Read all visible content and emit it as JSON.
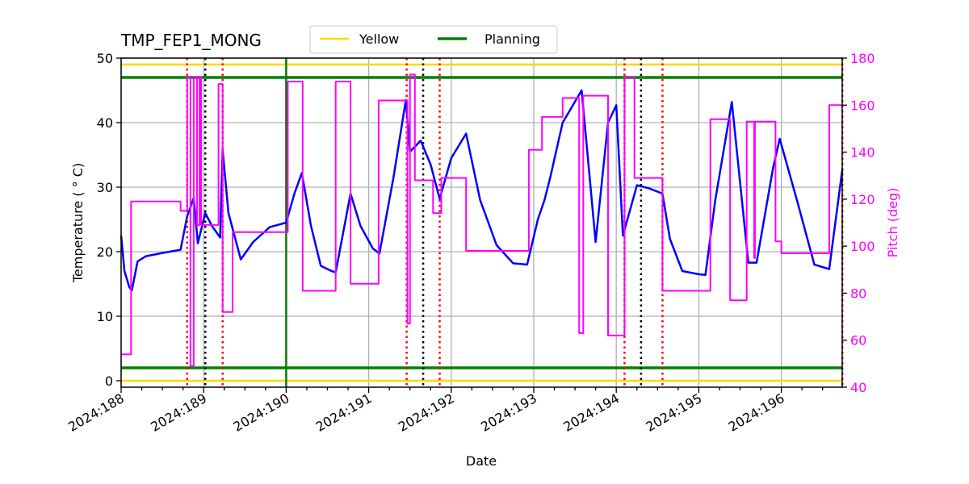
{
  "chart_data": {
    "type": "line",
    "title": "TMP_FEP1_MONG",
    "xlabel": "Date",
    "ylabel": "Temperature ($^\\circ$C)",
    "ylabel_display": "Temperature ( ° C)",
    "y2label": "Pitch (deg)",
    "xlim": [
      188.0,
      196.74
    ],
    "ylim": [
      -1.0,
      50.0
    ],
    "y2lim": [
      40,
      180
    ],
    "x_ticks": [
      188,
      189,
      190,
      191,
      192,
      193,
      194,
      195,
      196
    ],
    "x_tick_labels": [
      "2024:188",
      "2024:189",
      "2024:190",
      "2024:191",
      "2024:192",
      "2024:193",
      "2024:194",
      "2024:195",
      "2024:196"
    ],
    "y_ticks": [
      0,
      10,
      20,
      30,
      40,
      50
    ],
    "y2_ticks": [
      40,
      60,
      80,
      100,
      120,
      140,
      160,
      180
    ],
    "grid": true,
    "legend": {
      "position": "upper center (above axes)",
      "entries": [
        {
          "label": "Yellow",
          "color": "#ffd700"
        },
        {
          "label": "Planning",
          "color": "#008000"
        }
      ]
    },
    "limit_lines": {
      "yellow": [
        0.0,
        49.0
      ],
      "planning": [
        2.0,
        47.0
      ]
    },
    "vertical_lines": {
      "planning_green": [
        190.0
      ],
      "red_dotted": [
        188.8,
        189.23,
        191.46,
        191.86,
        194.1,
        194.56,
        196.74
      ],
      "black_dotted": [
        189.02,
        191.66,
        194.3
      ]
    },
    "series": [
      {
        "name": "TMP_FEP1_MONG",
        "axis": "left",
        "color": "#0000ff",
        "x": [
          188.0,
          188.04,
          188.1,
          188.13,
          188.2,
          188.3,
          188.5,
          188.72,
          188.8,
          188.88,
          188.93,
          189.02,
          189.1,
          189.2,
          189.23,
          189.3,
          189.45,
          189.6,
          189.8,
          190.0,
          190.1,
          190.19,
          190.3,
          190.42,
          190.55,
          190.6,
          190.78,
          190.9,
          191.05,
          191.13,
          191.3,
          191.45,
          191.5,
          191.63,
          191.75,
          191.86,
          192.0,
          192.18,
          192.35,
          192.55,
          192.75,
          192.92,
          193.05,
          193.13,
          193.2,
          193.35,
          193.58,
          193.75,
          193.9,
          194.0,
          194.08,
          194.25,
          194.4,
          194.56,
          194.65,
          194.8,
          195.0,
          195.08,
          195.2,
          195.4,
          195.6,
          195.7,
          195.9,
          195.98,
          196.2,
          196.4,
          196.58,
          196.74
        ],
        "values": [
          22.5,
          17.0,
          14.5,
          14.0,
          18.5,
          19.3,
          19.8,
          20.3,
          25.5,
          28.3,
          21.3,
          26.0,
          24.0,
          22.2,
          35.8,
          26.0,
          18.8,
          21.5,
          23.8,
          24.5,
          29.0,
          32.2,
          24.0,
          17.8,
          17.0,
          16.8,
          29.0,
          24.0,
          20.5,
          19.7,
          31.5,
          43.5,
          35.5,
          37.2,
          33.5,
          28.2,
          34.5,
          38.3,
          28.0,
          21.0,
          18.2,
          18.0,
          25.0,
          28.0,
          31.5,
          40.0,
          45.0,
          21.5,
          40.0,
          42.7,
          22.5,
          30.3,
          29.8,
          29.0,
          22.0,
          17.0,
          16.5,
          16.4,
          28.0,
          43.2,
          18.3,
          18.3,
          33.0,
          37.5,
          27.5,
          18.0,
          17.3,
          32.8
        ]
      },
      {
        "name": "Pitch",
        "axis": "right",
        "color": "#ff00ff",
        "step": true,
        "x": [
          188.0,
          188.12,
          188.72,
          188.8,
          188.84,
          188.87,
          188.88,
          188.92,
          188.95,
          188.97,
          189.0,
          189.1,
          189.18,
          189.23,
          189.35,
          189.8,
          190.02,
          190.2,
          190.6,
          190.78,
          191.12,
          191.47,
          191.5,
          191.56,
          191.65,
          191.78,
          191.88,
          192.18,
          192.88,
          192.94,
          193.1,
          193.35,
          193.55,
          193.6,
          193.9,
          194.1,
          194.22,
          194.56,
          195.14,
          195.38,
          195.58,
          195.67,
          195.68,
          195.93,
          196.0,
          196.58,
          196.74
        ],
        "values": [
          54,
          119,
          115,
          172,
          49,
          49,
          172,
          109,
          172,
          109,
          109,
          109,
          169,
          72,
          106,
          106,
          170,
          81,
          170,
          84,
          162,
          67,
          173,
          128,
          128,
          114,
          129,
          98,
          98,
          141,
          155,
          163,
          63,
          164,
          62,
          172,
          129,
          81,
          154,
          77,
          153,
          95,
          153,
          102,
          97,
          160,
          160
        ]
      }
    ]
  }
}
